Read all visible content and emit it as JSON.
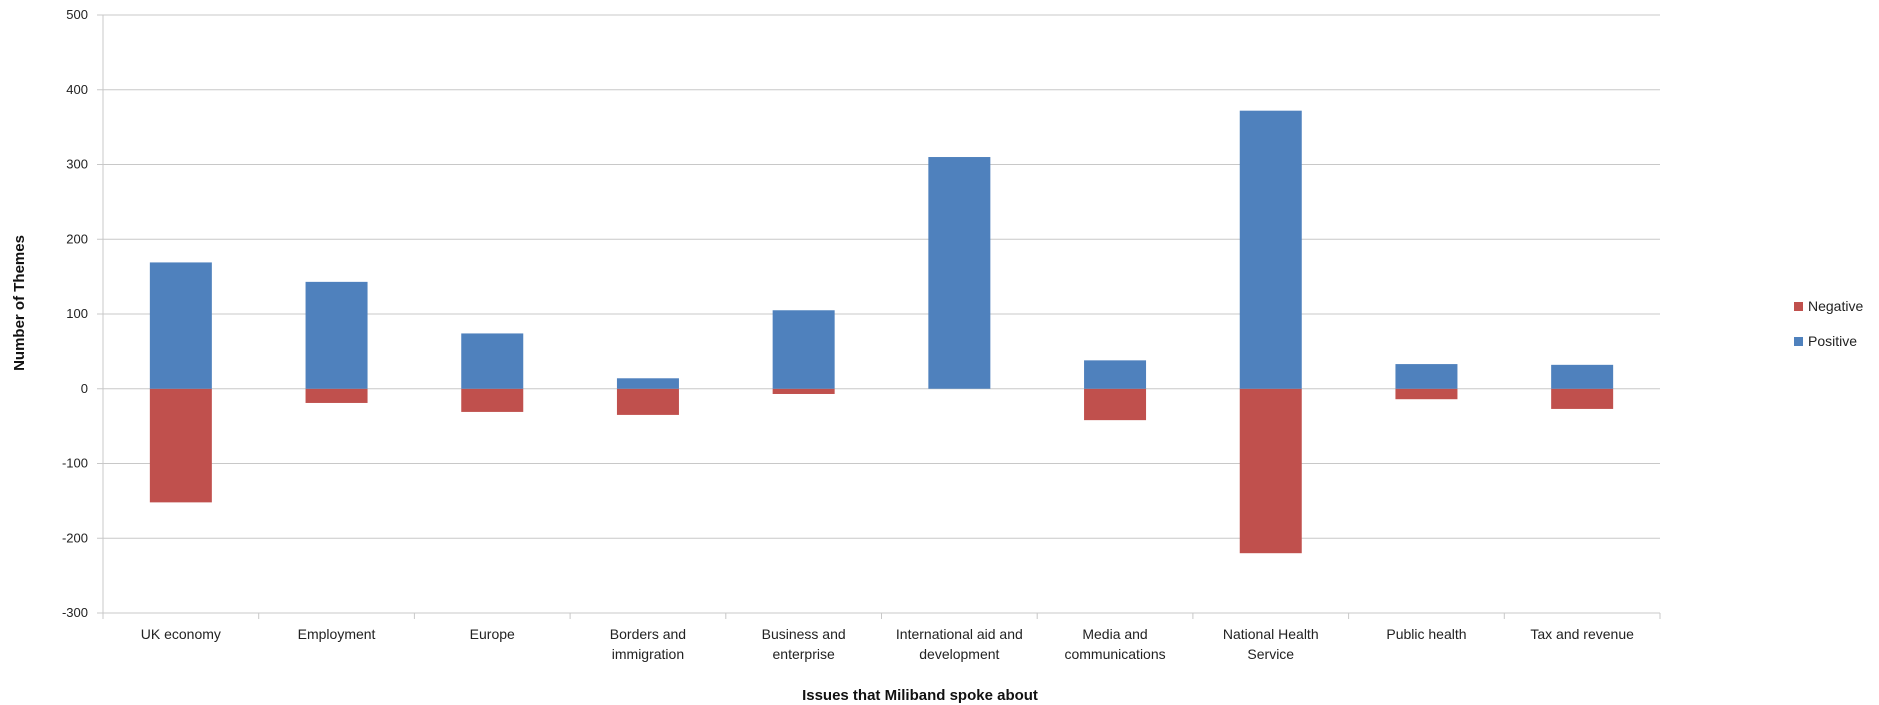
{
  "chart_data": {
    "type": "bar",
    "stacked": true,
    "title": "",
    "xlabel": "Issues that Miliband spoke about",
    "ylabel": "Number of Themes",
    "ylim": [
      -300,
      500
    ],
    "yticks": [
      500,
      400,
      300,
      200,
      100,
      0,
      -100,
      -200,
      -300
    ],
    "grid": true,
    "legend_position": "right",
    "categories": [
      [
        "UK economy"
      ],
      [
        "Employment"
      ],
      [
        "Europe"
      ],
      [
        "Borders and",
        "immigration"
      ],
      [
        "Business and",
        "enterprise"
      ],
      [
        "International aid and",
        "development"
      ],
      [
        "Media and",
        "communications"
      ],
      [
        "National Health",
        "Service"
      ],
      [
        "Public health"
      ],
      [
        "Tax and revenue"
      ]
    ],
    "series": [
      {
        "name": "Negative",
        "color": "#c0504d",
        "values": [
          -152,
          -19,
          -31,
          -35,
          -7,
          0,
          -42,
          -220,
          -14,
          -27
        ]
      },
      {
        "name": "Positive",
        "color": "#4f81bd",
        "values": [
          169,
          143,
          74,
          14,
          105,
          310,
          38,
          372,
          33,
          32
        ]
      }
    ]
  }
}
